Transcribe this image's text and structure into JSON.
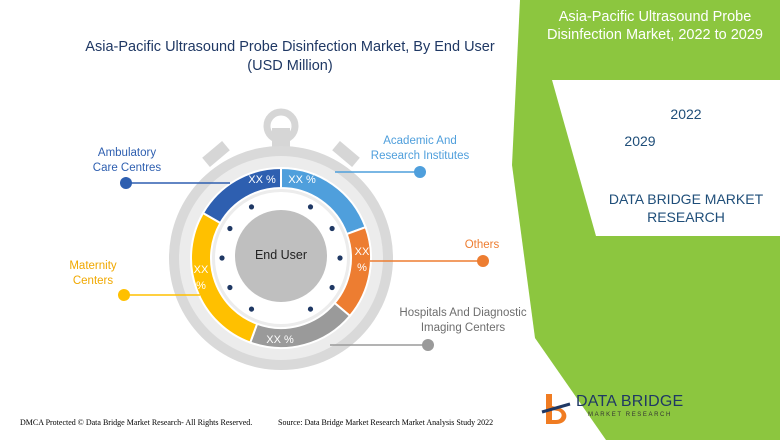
{
  "page_title_line1": "Asia-Pacific Ultrasound Probe Disinfection Market, By End User",
  "page_title_line2": "(USD Million)",
  "right_panel": {
    "title_line1": "Asia-Pacific Ultrasound Probe",
    "title_line2": "Disinfection Market, 2022 to 2029",
    "year_start": "2022",
    "year_end": "2029",
    "brand_line1": "DATA BRIDGE MARKET",
    "brand_line2": "RESEARCH"
  },
  "footer": {
    "left": "DMCA Protected © Data Bridge Market Research- All Rights Reserved.",
    "right": "Source: Data Bridge Market Research Market Analysis Study 2022"
  },
  "logo": {
    "name": "DATA BRIDGE",
    "tagline": "MARKET RESEARCH"
  },
  "colors": {
    "green": "#8cc63f",
    "blue_dark": "#2e5fb0",
    "blue_light": "#4f9fdc",
    "orange": "#ed7d31",
    "gray": "#9a9a9a",
    "yellow": "#ffc000",
    "title": "#1f3864"
  },
  "chart_data": {
    "type": "pie",
    "style": "donut (stopwatch)",
    "center_label": "End User",
    "segments": [
      {
        "name": "Ambulatory Care Centres",
        "label_line1": "Ambulatory",
        "label_line2": "Care Centres",
        "value_label": "XX %",
        "color": "#2e5fb0",
        "label_color": "#2e5fb0",
        "share": 0.1667
      },
      {
        "name": "Academic And Research Institutes",
        "label_line1": "Academic And",
        "label_line2": "Research Institutes",
        "value_label": "XX %",
        "color": "#4f9fdc",
        "label_color": "#4f9fdc",
        "share": 0.1944
      },
      {
        "name": "Others",
        "label_line1": "Others",
        "label_line2": "",
        "value_label_line1": "XX",
        "value_label_line2": "%",
        "color": "#ed7d31",
        "label_color": "#ed7d31",
        "share": 0.1667
      },
      {
        "name": "Hospitals And Diagnostic Imaging Centers",
        "label_line1": "Hospitals And Diagnostic",
        "label_line2": "Imaging Centers",
        "value_label": "XX %",
        "color": "#9a9a9a",
        "label_color": "#6e6e6e",
        "share": 0.1944
      },
      {
        "name": "Maternity Centers",
        "label_line1": "Maternity",
        "label_line2": "Centers",
        "value_label_line1": "XX",
        "value_label_line2": "%",
        "color": "#ffc000",
        "label_color": "#f0a800",
        "share": 0.2778
      }
    ]
  }
}
